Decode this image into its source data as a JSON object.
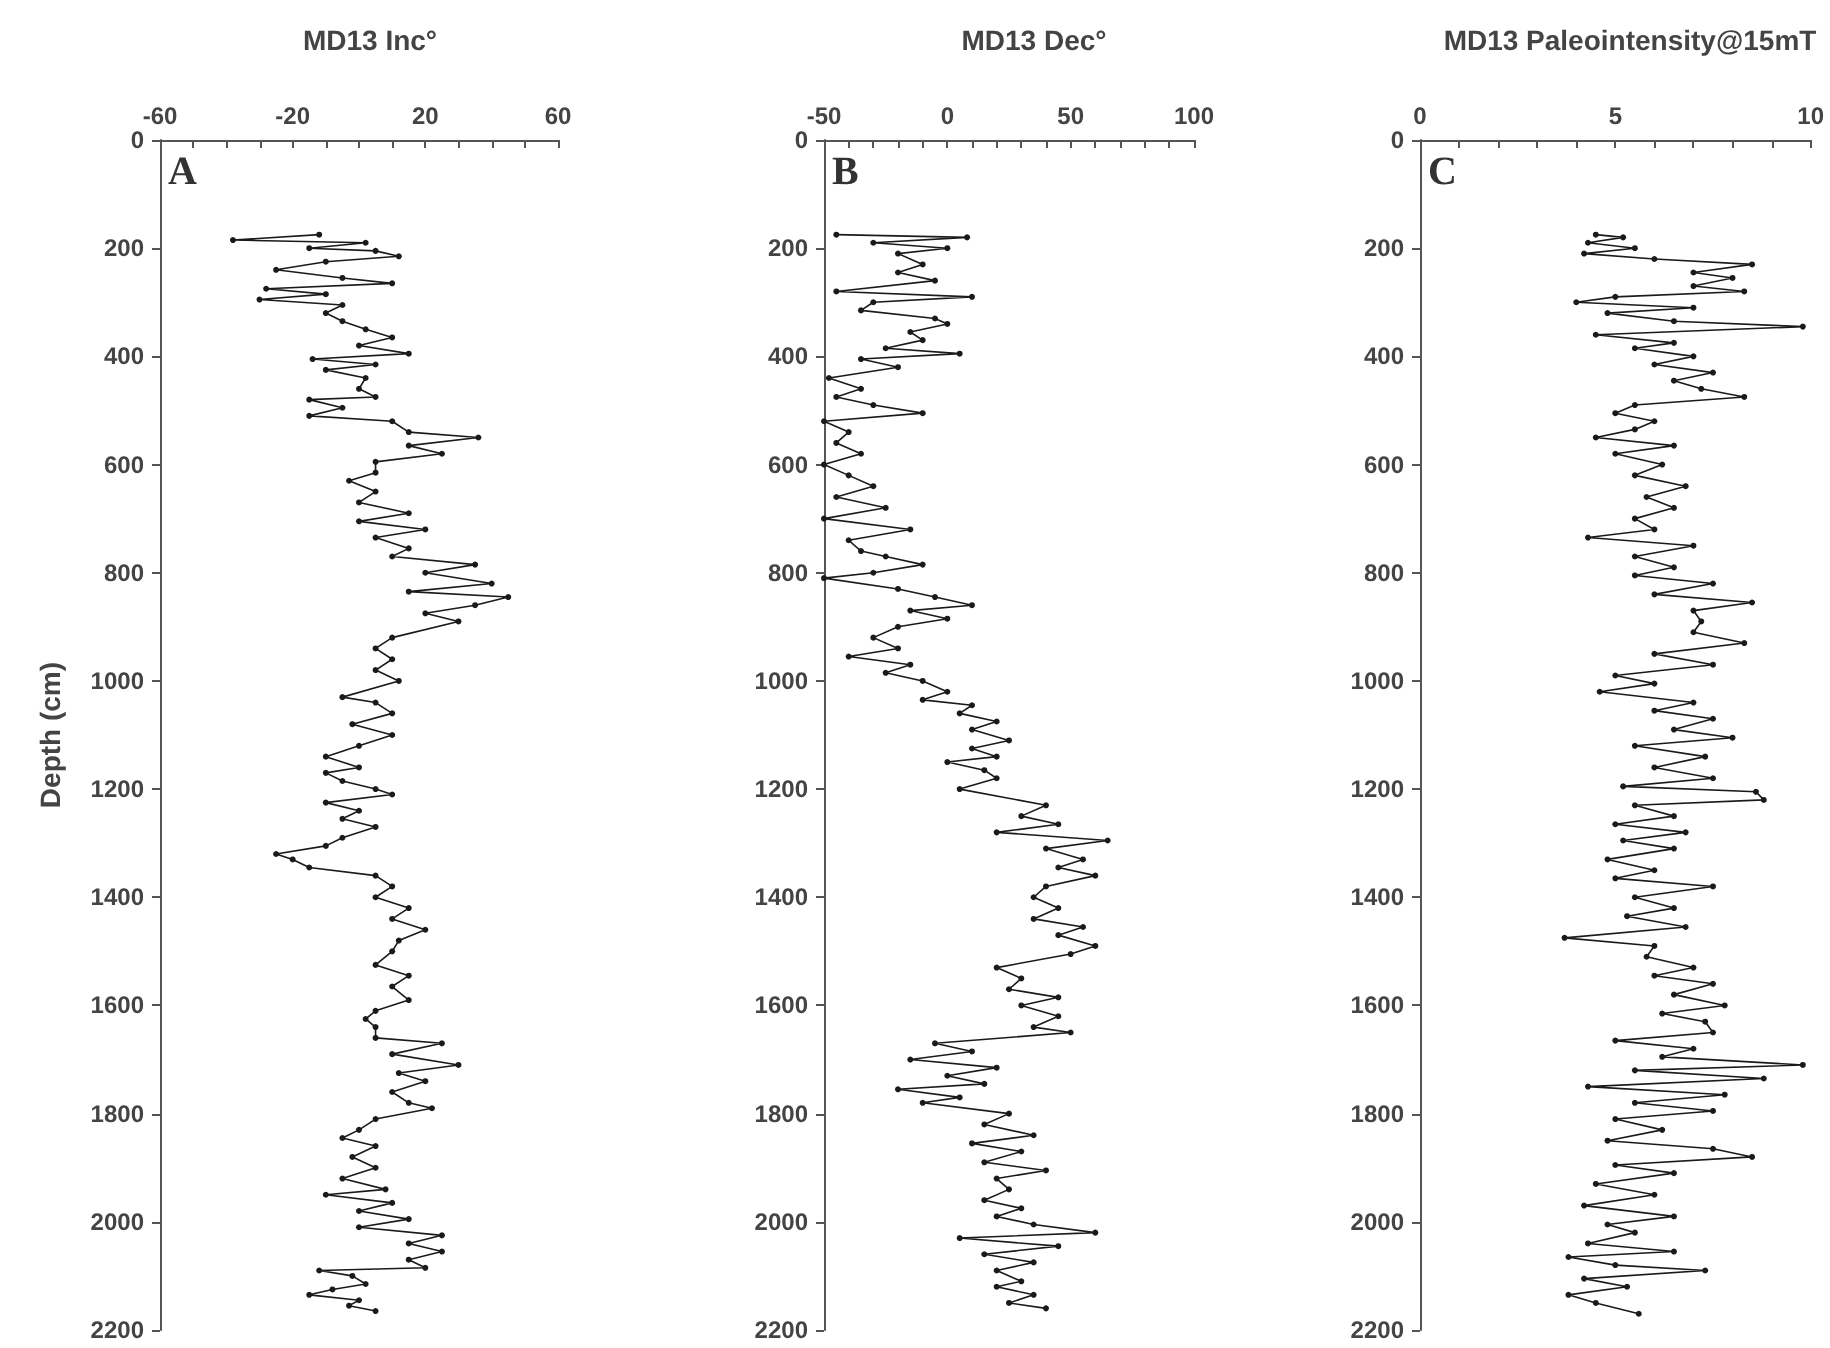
{
  "chart_data": [
    {
      "type": "line",
      "title": "MD13 Inc°",
      "ylabel": "Depth (cm)",
      "annotations": [
        "A"
      ],
      "marker": "circle",
      "line_style": "solid",
      "grid": false,
      "xlim": [
        -60,
        60
      ],
      "xticks": [
        -60,
        {
          "value": -50,
          "label": null
        },
        {
          "value": -40,
          "label": null
        },
        {
          "value": -30,
          "label": null
        },
        -20,
        {
          "value": -10,
          "label": null
        },
        {
          "value": 0,
          "label": null
        },
        {
          "value": 10,
          "label": null
        },
        20,
        {
          "value": 30,
          "label": null
        },
        {
          "value": 40,
          "label": null
        },
        {
          "value": 50,
          "label": null
        },
        60
      ],
      "ylim": [
        2200,
        0
      ],
      "yticks": [
        0,
        200,
        400,
        600,
        800,
        1000,
        1200,
        1400,
        1600,
        1800,
        2000,
        2200
      ],
      "series": [
        {
          "color": "#1a1a1a",
          "x": [
            -12,
            -38,
            2,
            -15,
            5,
            12,
            -10,
            -25,
            -5,
            10,
            -28,
            -10,
            -30,
            -5,
            -10,
            -5,
            2,
            10,
            0,
            15,
            -14,
            5,
            -10,
            2,
            0,
            5,
            -15,
            -5,
            -15,
            10,
            15,
            36,
            15,
            25,
            5,
            5,
            -3,
            5,
            0,
            15,
            0,
            20,
            5,
            15,
            10,
            35,
            20,
            40,
            15,
            45,
            35,
            20,
            30,
            10,
            5,
            10,
            5,
            12,
            -5,
            5,
            10,
            -2,
            10,
            0,
            -10,
            0,
            -10,
            -5,
            5,
            10,
            -10,
            0,
            -5,
            5,
            -5,
            -10,
            -25,
            -20,
            -15,
            5,
            10,
            5,
            15,
            10,
            20,
            12,
            10,
            5,
            15,
            10,
            15,
            5,
            2,
            5,
            5,
            25,
            10,
            30,
            12,
            20,
            10,
            15,
            22,
            5,
            0,
            -5,
            5,
            -2,
            5,
            -5,
            8,
            -10,
            10,
            0,
            15,
            0,
            25,
            15,
            25,
            15,
            20,
            -12,
            -2,
            2,
            -8,
            -15,
            0,
            -3,
            5
          ],
          "values": [
            175,
            185,
            190,
            200,
            205,
            215,
            225,
            240,
            255,
            265,
            275,
            285,
            295,
            305,
            320,
            335,
            350,
            365,
            380,
            395,
            405,
            415,
            425,
            440,
            460,
            475,
            480,
            495,
            510,
            520,
            540,
            550,
            565,
            580,
            595,
            615,
            630,
            650,
            670,
            690,
            705,
            720,
            735,
            755,
            770,
            785,
            800,
            820,
            835,
            845,
            860,
            875,
            890,
            920,
            940,
            960,
            980,
            1000,
            1030,
            1040,
            1060,
            1080,
            1100,
            1120,
            1140,
            1160,
            1170,
            1185,
            1200,
            1210,
            1225,
            1240,
            1255,
            1270,
            1290,
            1305,
            1320,
            1330,
            1345,
            1360,
            1380,
            1400,
            1420,
            1440,
            1460,
            1480,
            1500,
            1525,
            1545,
            1565,
            1590,
            1610,
            1625,
            1640,
            1660,
            1670,
            1690,
            1710,
            1725,
            1740,
            1760,
            1780,
            1790,
            1810,
            1830,
            1845,
            1860,
            1880,
            1900,
            1920,
            1940,
            1950,
            1965,
            1980,
            1995,
            2010,
            2025,
            2040,
            2055,
            2070,
            2085,
            2090,
            2100,
            2115,
            2125,
            2135,
            2145,
            2155,
            2165
          ]
        }
      ]
    },
    {
      "type": "line",
      "title": "MD13 Dec°",
      "annotations": [
        "B"
      ],
      "marker": "circle",
      "line_style": "solid",
      "grid": false,
      "xlim": [
        -50,
        100
      ],
      "xticks": [
        -50,
        {
          "value": -40,
          "label": null
        },
        {
          "value": -30,
          "label": null
        },
        {
          "value": -20,
          "label": null
        },
        {
          "value": -10,
          "label": null
        },
        0,
        {
          "value": 10,
          "label": null
        },
        {
          "value": 20,
          "label": null
        },
        {
          "value": 30,
          "label": null
        },
        {
          "value": 40,
          "label": null
        },
        50,
        {
          "value": 60,
          "label": null
        },
        {
          "value": 70,
          "label": null
        },
        {
          "value": 80,
          "label": null
        },
        {
          "value": 90,
          "label": null
        },
        100
      ],
      "ylim": [
        2200,
        0
      ],
      "yticks": [
        0,
        200,
        400,
        600,
        800,
        1000,
        1200,
        1400,
        1600,
        1800,
        2000,
        2200
      ],
      "series": [
        {
          "color": "#1a1a1a",
          "x": [
            -45,
            8,
            -30,
            0,
            -20,
            -10,
            -20,
            -5,
            -45,
            10,
            -30,
            -35,
            -5,
            0,
            -15,
            -10,
            -25,
            5,
            -35,
            -20,
            -48,
            -35,
            -45,
            -30,
            -10,
            -50,
            -40,
            -45,
            -35,
            -50,
            -40,
            -30,
            -45,
            -25,
            -50,
            -15,
            -40,
            -35,
            -25,
            -10,
            -30,
            -50,
            -20,
            -5,
            10,
            -15,
            0,
            -20,
            -30,
            -20,
            -40,
            -15,
            -25,
            -10,
            0,
            -10,
            10,
            5,
            20,
            10,
            25,
            10,
            20,
            0,
            15,
            20,
            5,
            40,
            30,
            45,
            20,
            65,
            40,
            55,
            45,
            60,
            40,
            35,
            45,
            35,
            55,
            45,
            60,
            50,
            20,
            30,
            25,
            45,
            30,
            45,
            35,
            50,
            -5,
            10,
            -15,
            20,
            0,
            15,
            -20,
            5,
            -10,
            25,
            15,
            35,
            10,
            30,
            15,
            40,
            20,
            25,
            15,
            30,
            20,
            35,
            60,
            5,
            45,
            15,
            35,
            20,
            30,
            20,
            35,
            25,
            40
          ],
          "values": [
            175,
            180,
            190,
            200,
            210,
            230,
            245,
            260,
            280,
            290,
            300,
            315,
            330,
            340,
            355,
            370,
            385,
            395,
            405,
            420,
            440,
            460,
            475,
            490,
            505,
            520,
            540,
            560,
            580,
            600,
            620,
            640,
            660,
            680,
            700,
            720,
            740,
            760,
            770,
            785,
            800,
            810,
            830,
            845,
            860,
            870,
            885,
            900,
            920,
            940,
            955,
            970,
            985,
            1000,
            1020,
            1035,
            1045,
            1060,
            1075,
            1090,
            1110,
            1125,
            1140,
            1150,
            1165,
            1180,
            1200,
            1230,
            1250,
            1265,
            1280,
            1295,
            1310,
            1330,
            1345,
            1360,
            1380,
            1400,
            1420,
            1440,
            1455,
            1470,
            1490,
            1505,
            1530,
            1550,
            1570,
            1585,
            1600,
            1620,
            1640,
            1650,
            1670,
            1685,
            1700,
            1715,
            1730,
            1745,
            1755,
            1770,
            1780,
            1800,
            1820,
            1840,
            1855,
            1870,
            1890,
            1905,
            1920,
            1940,
            1960,
            1975,
            1990,
            2005,
            2020,
            2030,
            2045,
            2060,
            2075,
            2090,
            2110,
            2120,
            2135,
            2150,
            2160
          ]
        }
      ]
    },
    {
      "type": "line",
      "title": "MD13 Paleointensity@15mT",
      "annotations": [
        "C"
      ],
      "marker": "circle",
      "line_style": "solid",
      "grid": false,
      "xlim": [
        0,
        10
      ],
      "xticks": [
        0,
        {
          "value": 1,
          "label": null
        },
        {
          "value": 2,
          "label": null
        },
        {
          "value": 3,
          "label": null
        },
        {
          "value": 4,
          "label": null
        },
        5,
        {
          "value": 6,
          "label": null
        },
        {
          "value": 7,
          "label": null
        },
        {
          "value": 8,
          "label": null
        },
        {
          "value": 9,
          "label": null
        },
        10
      ],
      "ylim": [
        2200,
        0
      ],
      "yticks": [
        0,
        200,
        400,
        600,
        800,
        1000,
        1200,
        1400,
        1600,
        1800,
        2000,
        2200
      ],
      "series": [
        {
          "color": "#1a1a1a",
          "x": [
            4.5,
            5.2,
            4.3,
            5.5,
            4.2,
            6,
            8.5,
            7,
            8,
            7,
            8.3,
            5,
            4,
            7,
            4.8,
            6.5,
            9.8,
            4.5,
            6.5,
            5.5,
            7,
            6,
            7.5,
            6.5,
            7.2,
            8.3,
            5.5,
            5,
            6,
            5.5,
            4.5,
            6.5,
            5,
            6.2,
            5.5,
            6.8,
            5.8,
            6.5,
            5.5,
            6,
            4.3,
            7,
            5.5,
            6.5,
            5.5,
            7.5,
            6,
            8.5,
            7,
            7.2,
            7,
            8.3,
            6,
            7.5,
            5,
            6,
            4.6,
            7,
            6,
            7.5,
            6.5,
            8,
            5.5,
            7.3,
            6,
            7.5,
            5.2,
            8.6,
            8.8,
            5.5,
            6.5,
            5,
            6.8,
            5.2,
            6.5,
            4.8,
            6,
            5,
            7.5,
            5.5,
            6.5,
            5.3,
            6.8,
            3.7,
            6,
            5.8,
            7,
            6,
            7.5,
            6.5,
            7.8,
            6.2,
            7.3,
            7.5,
            5,
            7,
            6.2,
            9.8,
            5.5,
            8.8,
            4.3,
            7.8,
            5.5,
            7.5,
            5,
            6.2,
            4.8,
            7.5,
            8.5,
            5,
            6.5,
            4.5,
            6,
            4.2,
            6.5,
            4.8,
            5.5,
            4.3,
            6.5,
            3.8,
            5,
            7.3,
            4.2,
            5.3,
            3.8,
            4.5,
            5.6
          ],
          "values": [
            175,
            180,
            190,
            200,
            210,
            220,
            230,
            245,
            255,
            270,
            280,
            290,
            300,
            310,
            320,
            335,
            345,
            360,
            375,
            385,
            400,
            415,
            430,
            445,
            460,
            475,
            490,
            505,
            520,
            535,
            550,
            565,
            580,
            600,
            620,
            640,
            660,
            680,
            700,
            720,
            735,
            750,
            770,
            790,
            805,
            820,
            840,
            855,
            870,
            890,
            910,
            930,
            950,
            970,
            990,
            1005,
            1020,
            1040,
            1055,
            1070,
            1090,
            1105,
            1120,
            1140,
            1160,
            1180,
            1195,
            1205,
            1220,
            1230,
            1250,
            1265,
            1280,
            1295,
            1310,
            1330,
            1350,
            1365,
            1380,
            1400,
            1420,
            1435,
            1455,
            1475,
            1490,
            1510,
            1530,
            1545,
            1560,
            1580,
            1600,
            1615,
            1630,
            1650,
            1665,
            1680,
            1695,
            1710,
            1720,
            1735,
            1750,
            1765,
            1780,
            1795,
            1810,
            1830,
            1850,
            1865,
            1880,
            1895,
            1910,
            1930,
            1950,
            1970,
            1990,
            2005,
            2020,
            2040,
            2055,
            2065,
            2080,
            2090,
            2105,
            2120,
            2135,
            2150,
            2170
          ]
        }
      ]
    }
  ]
}
